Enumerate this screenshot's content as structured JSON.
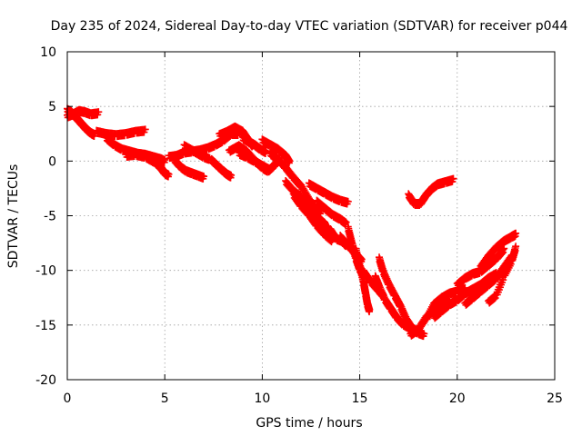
{
  "chart_data": {
    "type": "scatter",
    "title": "Day 235 of 2024, Sidereal Day-to-day VTEC variation (SDTVAR) for receiver p044",
    "xlabel": "GPS time / hours",
    "ylabel": "SDTVAR / TECUs",
    "xlim": [
      0,
      25
    ],
    "ylim": [
      -20,
      10
    ],
    "x_ticks": [
      0,
      5,
      10,
      15,
      20,
      25
    ],
    "y_ticks": [
      -20,
      -15,
      -10,
      -5,
      0,
      5,
      10
    ],
    "x_tick_labels": [
      "0",
      "5",
      "10",
      "15",
      "20",
      "25"
    ],
    "y_tick_labels": [
      "-20",
      "-15",
      "-10",
      "-5",
      "0",
      "5",
      "10"
    ],
    "grid": true,
    "marker": "+",
    "series": [
      {
        "name": "SDTVAR",
        "color": "#ff0000",
        "tracks": [
          [
            [
              0.0,
              4.8
            ],
            [
              0.2,
              4.6
            ],
            [
              0.4,
              4.2
            ],
            [
              0.6,
              3.8
            ],
            [
              0.8,
              3.4
            ],
            [
              1.0,
              3.0
            ],
            [
              1.2,
              2.7
            ],
            [
              1.4,
              2.5
            ]
          ],
          [
            [
              0.0,
              4.2
            ],
            [
              0.3,
              4.4
            ],
            [
              0.6,
              4.7
            ],
            [
              0.9,
              4.6
            ],
            [
              1.2,
              4.4
            ],
            [
              1.6,
              4.5
            ]
          ],
          [
            [
              1.5,
              2.8
            ],
            [
              2.0,
              2.6
            ],
            [
              2.5,
              2.5
            ],
            [
              3.0,
              2.6
            ],
            [
              3.5,
              2.8
            ],
            [
              4.0,
              2.9
            ]
          ],
          [
            [
              2.0,
              2.2
            ],
            [
              2.4,
              1.6
            ],
            [
              2.8,
              1.2
            ],
            [
              3.2,
              1.0
            ],
            [
              3.6,
              0.8
            ],
            [
              4.0,
              0.7
            ],
            [
              4.4,
              0.5
            ],
            [
              4.8,
              0.3
            ],
            [
              5.0,
              0.1
            ]
          ],
          [
            [
              3.0,
              0.6
            ],
            [
              3.5,
              0.7
            ],
            [
              4.0,
              0.5
            ],
            [
              4.5,
              0.0
            ],
            [
              4.8,
              -0.5
            ],
            [
              5.0,
              -1.0
            ],
            [
              5.2,
              -1.2
            ]
          ],
          [
            [
              5.2,
              0.5
            ],
            [
              5.6,
              0.6
            ],
            [
              6.0,
              0.9
            ],
            [
              6.4,
              1.0
            ],
            [
              6.8,
              1.1
            ],
            [
              7.2,
              1.3
            ],
            [
              7.6,
              1.6
            ],
            [
              8.0,
              2.0
            ],
            [
              8.4,
              2.6
            ],
            [
              8.8,
              2.6
            ]
          ],
          [
            [
              5.5,
              0.2
            ],
            [
              5.8,
              -0.4
            ],
            [
              6.1,
              -0.8
            ],
            [
              6.4,
              -1.0
            ],
            [
              6.7,
              -1.2
            ],
            [
              7.0,
              -1.4
            ]
          ],
          [
            [
              6.0,
              1.5
            ],
            [
              6.5,
              1.0
            ],
            [
              7.0,
              0.5
            ],
            [
              7.3,
              0.3
            ]
          ],
          [
            [
              7.4,
              0.2
            ],
            [
              7.7,
              -0.3
            ],
            [
              8.0,
              -0.8
            ],
            [
              8.2,
              -1.1
            ],
            [
              8.4,
              -1.3
            ]
          ],
          [
            [
              7.8,
              2.5
            ],
            [
              8.2,
              2.8
            ],
            [
              8.6,
              3.2
            ],
            [
              9.0,
              2.8
            ],
            [
              9.3,
              2.0
            ],
            [
              9.5,
              1.5
            ]
          ],
          [
            [
              8.3,
              1.0
            ],
            [
              8.8,
              1.5
            ],
            [
              9.2,
              1.0
            ],
            [
              9.6,
              0.2
            ],
            [
              10.0,
              -0.5
            ],
            [
              10.3,
              -0.8
            ],
            [
              10.6,
              -0.3
            ],
            [
              10.9,
              0.3
            ]
          ],
          [
            [
              8.8,
              0.8
            ],
            [
              9.2,
              0.5
            ],
            [
              9.6,
              0.1
            ],
            [
              10.0,
              -0.3
            ],
            [
              10.4,
              -0.7
            ]
          ],
          [
            [
              9.0,
              2.2
            ],
            [
              9.3,
              1.9
            ],
            [
              9.6,
              1.6
            ],
            [
              9.9,
              1.2
            ],
            [
              10.2,
              0.9
            ]
          ],
          [
            [
              10.0,
              2.0
            ],
            [
              10.4,
              1.6
            ],
            [
              10.8,
              1.2
            ],
            [
              11.2,
              0.6
            ],
            [
              11.4,
              0.0
            ]
          ],
          [
            [
              10.4,
              0.8
            ],
            [
              10.8,
              0.3
            ],
            [
              11.2,
              -0.5
            ],
            [
              11.6,
              -1.4
            ],
            [
              12.0,
              -2.2
            ],
            [
              12.4,
              -3.4
            ],
            [
              12.8,
              -4.4
            ],
            [
              13.0,
              -4.6
            ]
          ],
          [
            [
              11.2,
              -1.8
            ],
            [
              11.6,
              -2.6
            ],
            [
              12.0,
              -3.2
            ],
            [
              12.4,
              -4.2
            ],
            [
              12.8,
              -5.0
            ],
            [
              13.2,
              -5.6
            ],
            [
              13.4,
              -6.4
            ]
          ],
          [
            [
              11.6,
              -3.0
            ],
            [
              12.0,
              -4.0
            ],
            [
              12.4,
              -4.8
            ],
            [
              12.8,
              -5.8
            ],
            [
              13.2,
              -6.6
            ],
            [
              13.6,
              -7.2
            ]
          ],
          [
            [
              12.4,
              -2.0
            ],
            [
              12.8,
              -2.4
            ],
            [
              13.2,
              -2.8
            ],
            [
              13.6,
              -3.2
            ],
            [
              14.0,
              -3.5
            ],
            [
              14.4,
              -3.7
            ]
          ],
          [
            [
              12.8,
              -3.6
            ],
            [
              13.2,
              -4.2
            ],
            [
              13.6,
              -4.8
            ],
            [
              14.0,
              -5.2
            ],
            [
              14.3,
              -5.6
            ]
          ],
          [
            [
              13.5,
              -6.2
            ],
            [
              13.8,
              -7.0
            ],
            [
              14.1,
              -7.2
            ],
            [
              14.3,
              -7.6
            ]
          ],
          [
            [
              14.0,
              -6.8
            ],
            [
              14.3,
              -7.4
            ],
            [
              14.6,
              -8.0
            ],
            [
              14.9,
              -8.6
            ],
            [
              15.1,
              -9.0
            ]
          ],
          [
            [
              14.4,
              -6.0
            ],
            [
              14.6,
              -7.4
            ],
            [
              14.8,
              -8.8
            ],
            [
              15.0,
              -9.8
            ],
            [
              15.2,
              -10.4
            ]
          ],
          [
            [
              14.8,
              -8.0
            ],
            [
              15.0,
              -9.4
            ],
            [
              15.2,
              -11.0
            ],
            [
              15.3,
              -12.0
            ],
            [
              15.4,
              -13.0
            ],
            [
              15.5,
              -13.6
            ]
          ],
          [
            [
              15.2,
              -10.0
            ],
            [
              15.6,
              -11.0
            ],
            [
              16.0,
              -11.8
            ],
            [
              16.2,
              -12.2
            ]
          ],
          [
            [
              15.8,
              -10.5
            ],
            [
              16.0,
              -11.4
            ],
            [
              16.3,
              -12.6
            ],
            [
              16.6,
              -13.4
            ],
            [
              16.9,
              -14.2
            ],
            [
              17.2,
              -14.8
            ],
            [
              17.6,
              -15.2
            ],
            [
              18.0,
              -15.6
            ],
            [
              18.3,
              -15.8
            ]
          ],
          [
            [
              16.0,
              -8.8
            ],
            [
              16.2,
              -10.0
            ],
            [
              16.5,
              -11.2
            ],
            [
              16.8,
              -12.2
            ],
            [
              17.1,
              -13.2
            ],
            [
              17.4,
              -14.4
            ],
            [
              17.7,
              -15.2
            ],
            [
              18.0,
              -15.5
            ]
          ],
          [
            [
              17.5,
              -3.0
            ],
            [
              17.8,
              -3.8
            ],
            [
              18.1,
              -3.8
            ],
            [
              18.4,
              -3.0
            ],
            [
              18.7,
              -2.4
            ],
            [
              19.0,
              -2.0
            ],
            [
              19.4,
              -1.8
            ],
            [
              19.8,
              -1.6
            ]
          ],
          [
            [
              17.6,
              -15.8
            ],
            [
              18.0,
              -15.3
            ],
            [
              18.4,
              -14.2
            ],
            [
              18.8,
              -13.5
            ],
            [
              19.2,
              -13.0
            ],
            [
              19.6,
              -12.8
            ]
          ],
          [
            [
              18.4,
              -14.4
            ],
            [
              18.8,
              -13.0
            ],
            [
              19.2,
              -12.4
            ],
            [
              19.6,
              -12.0
            ],
            [
              20.0,
              -11.8
            ],
            [
              20.4,
              -11.6
            ]
          ],
          [
            [
              18.8,
              -14.2
            ],
            [
              19.2,
              -13.6
            ],
            [
              19.6,
              -13.0
            ],
            [
              20.0,
              -12.6
            ],
            [
              20.4,
              -12.0
            ],
            [
              20.8,
              -11.6
            ],
            [
              21.2,
              -11.2
            ],
            [
              21.6,
              -10.6
            ],
            [
              22.0,
              -10.2
            ]
          ],
          [
            [
              20.0,
              -11.2
            ],
            [
              20.4,
              -10.6
            ],
            [
              20.8,
              -10.2
            ],
            [
              21.2,
              -10.0
            ],
            [
              21.6,
              -9.4
            ],
            [
              22.0,
              -8.8
            ],
            [
              22.4,
              -8.0
            ]
          ],
          [
            [
              20.4,
              -13.0
            ],
            [
              20.8,
              -12.4
            ],
            [
              21.2,
              -11.8
            ],
            [
              21.6,
              -11.2
            ],
            [
              22.0,
              -10.6
            ],
            [
              22.4,
              -9.6
            ],
            [
              22.8,
              -8.6
            ]
          ],
          [
            [
              21.6,
              -12.8
            ],
            [
              22.0,
              -12.2
            ],
            [
              22.4,
              -10.4
            ],
            [
              22.8,
              -9.0
            ],
            [
              23.0,
              -7.8
            ]
          ],
          [
            [
              21.2,
              -9.6
            ],
            [
              21.6,
              -8.6
            ],
            [
              22.0,
              -7.8
            ],
            [
              22.4,
              -7.2
            ],
            [
              22.8,
              -6.8
            ],
            [
              23.0,
              -6.6
            ]
          ]
        ]
      }
    ]
  }
}
